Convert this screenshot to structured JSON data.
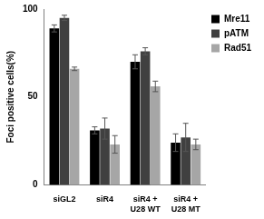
{
  "chart_data": {
    "type": "bar",
    "y_label": "Foci positive cells(%)",
    "categories": [
      "siGL2",
      "siR4",
      [
        "siR4 +",
        "U28 WT"
      ],
      [
        "siR4 +",
        "U28 MT"
      ]
    ],
    "series": [
      {
        "name": "Mre11",
        "color": "#000000",
        "values": [
          89,
          31,
          70,
          24
        ],
        "errors": [
          2,
          2,
          4,
          5
        ]
      },
      {
        "name": "pATM",
        "color": "#404040",
        "values": [
          95,
          32,
          76,
          27
        ],
        "errors": [
          1.5,
          6,
          2,
          8
        ]
      },
      {
        "name": "Rad51",
        "color": "#a6a6a6",
        "values": [
          66,
          23,
          56,
          23
        ],
        "errors": [
          1,
          5,
          3,
          3
        ]
      }
    ],
    "ylim": [
      0,
      100
    ],
    "yticks": [
      0,
      50,
      100
    ],
    "grid": false,
    "legend": "right"
  }
}
